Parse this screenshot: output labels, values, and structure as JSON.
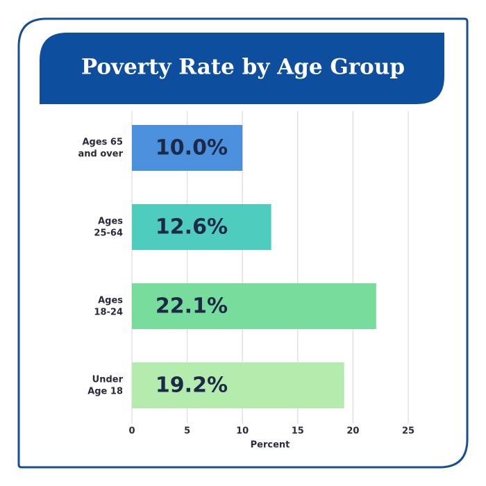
{
  "chart_data": {
    "type": "bar",
    "orientation": "horizontal",
    "title": "Poverty Rate by Age Group",
    "categories": [
      "Ages 65\nand over",
      "Ages\n25-64",
      "Ages\n18-24",
      "Under\nAge 18"
    ],
    "values": [
      10.0,
      12.6,
      22.1,
      19.2
    ],
    "value_labels": [
      "10.0%",
      "12.6%",
      "22.1%",
      "19.2%"
    ],
    "colors": [
      "#4a90dc",
      "#4ecdbf",
      "#78dc9c",
      "#b4ecae"
    ],
    "xlabel": "Percent",
    "xlim": [
      0,
      25
    ],
    "xticks": [
      0,
      5,
      10,
      15,
      20,
      25
    ],
    "grid": true
  }
}
